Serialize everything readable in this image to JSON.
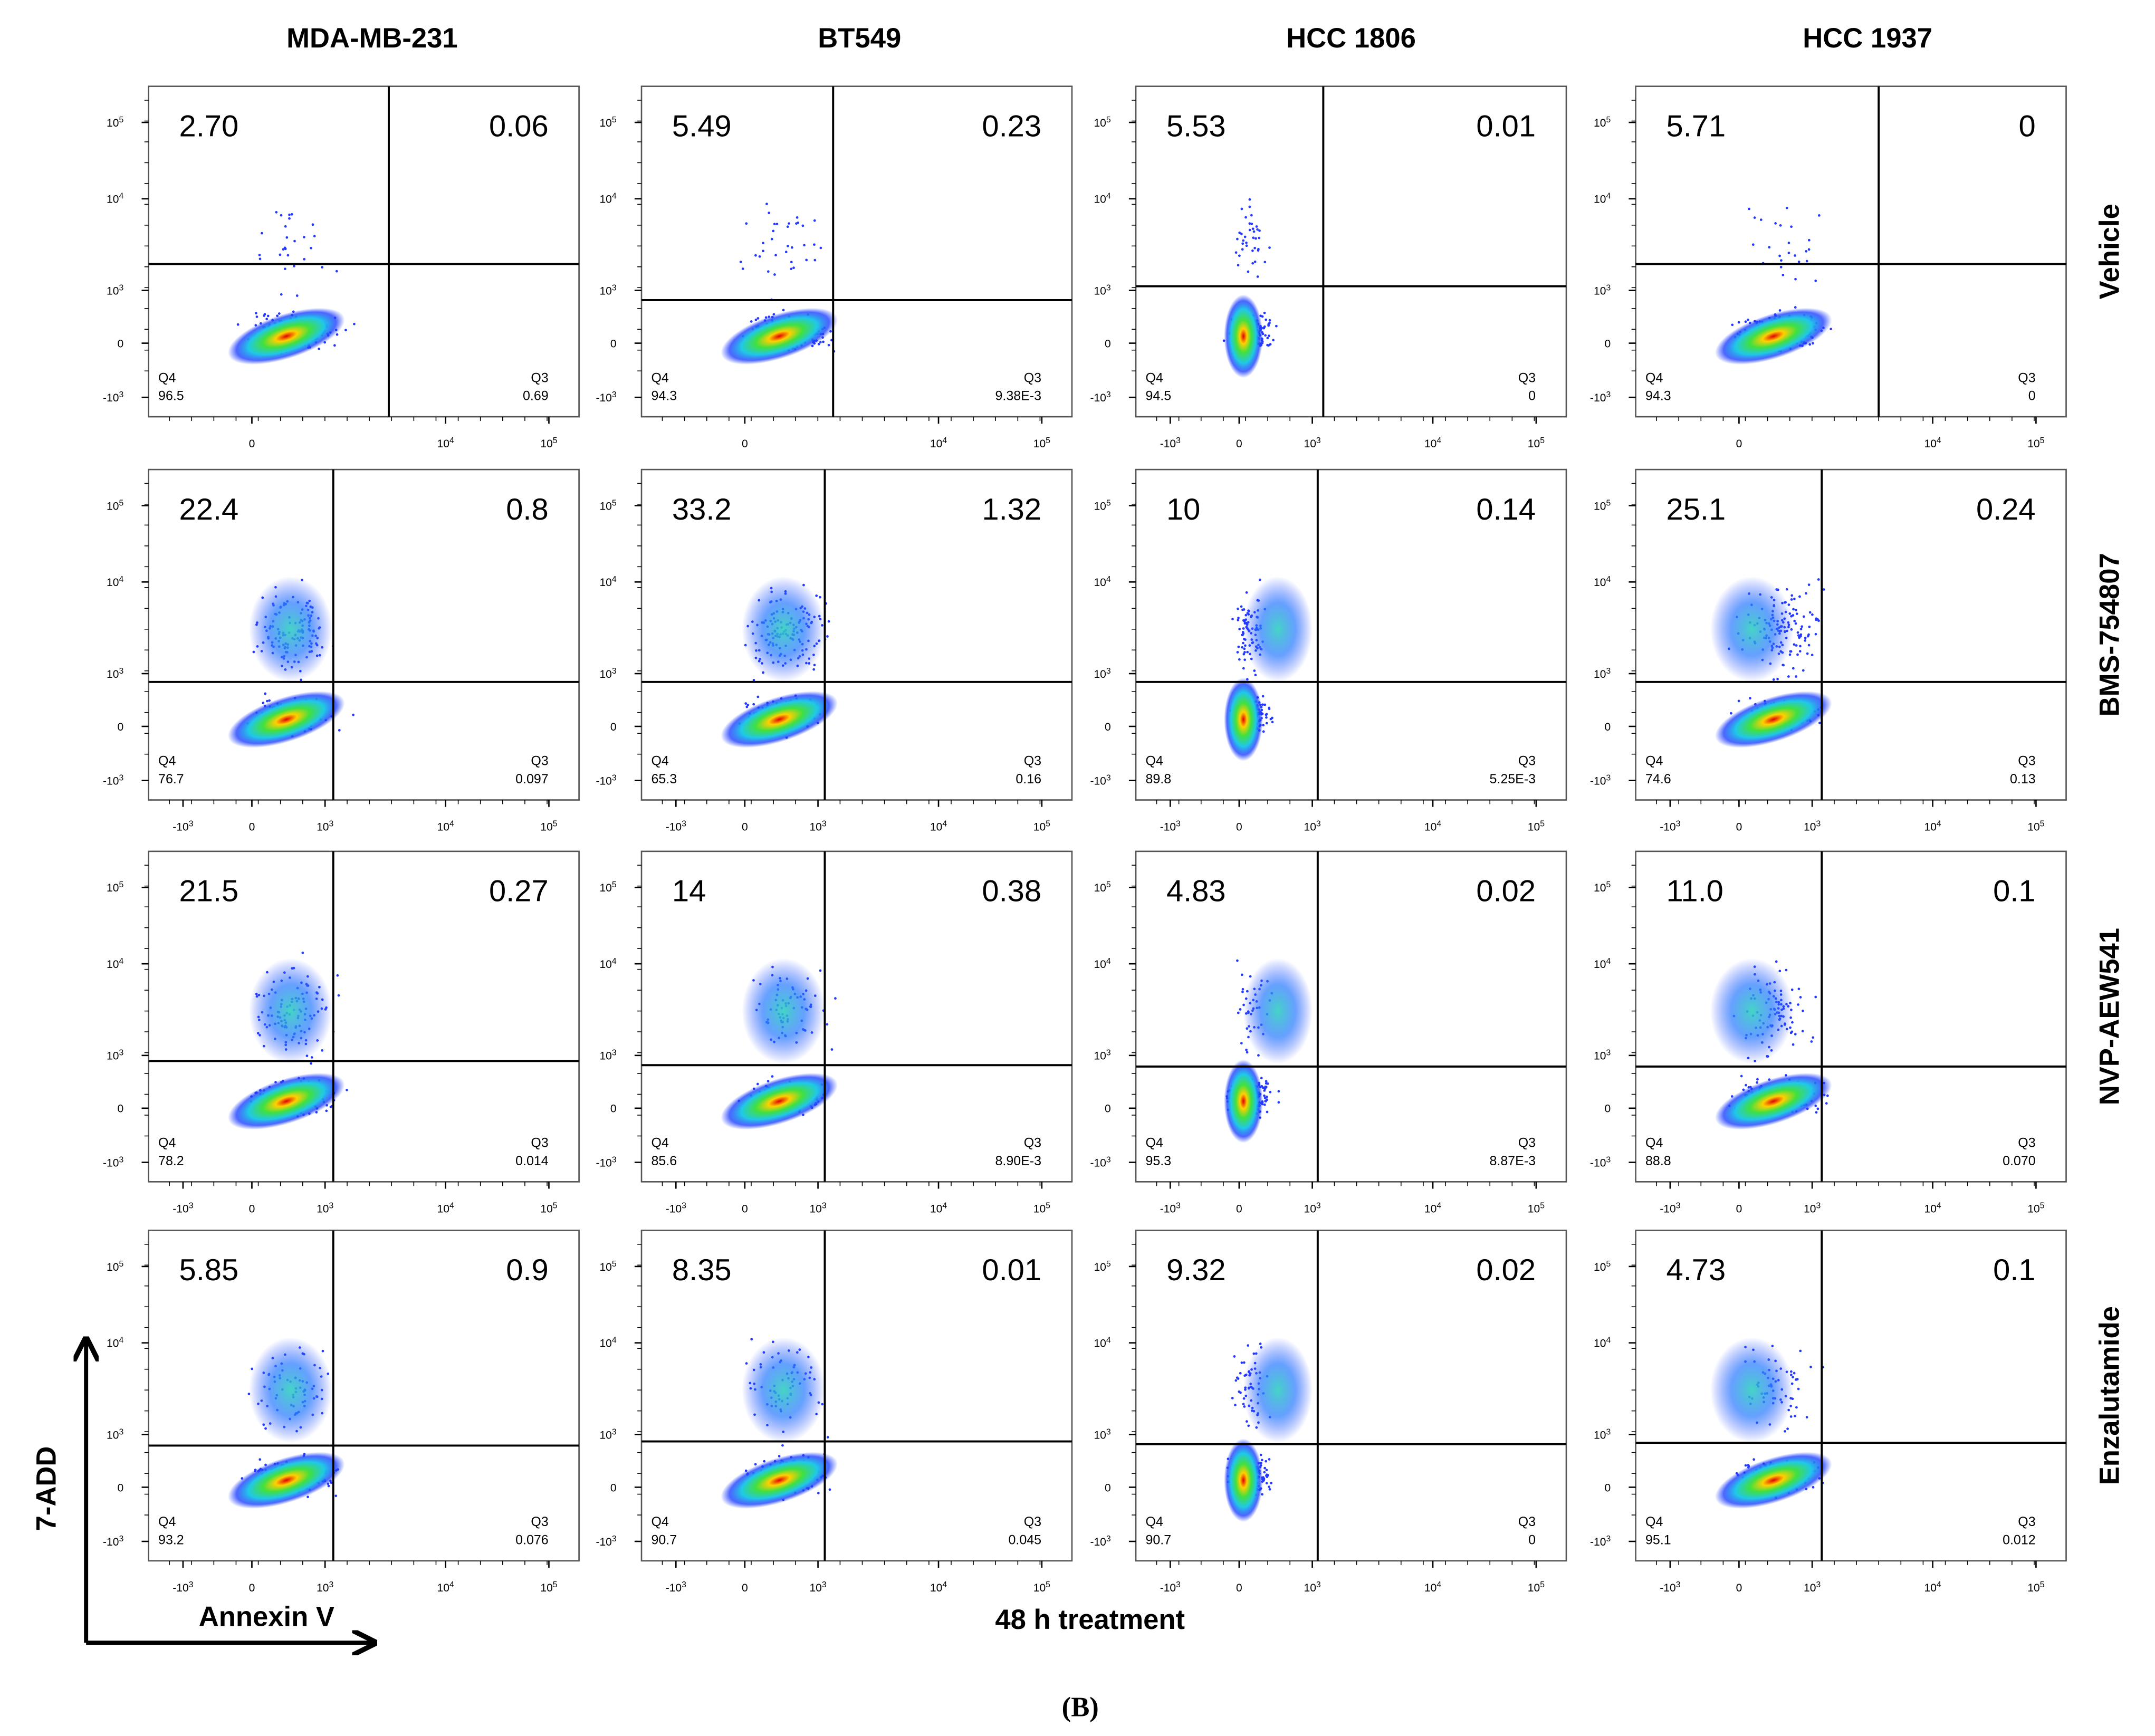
{
  "columns": [
    "MDA-MB-231",
    "BT549",
    "HCC 1806",
    "HCC 1937"
  ],
  "rows": [
    "Vehicle",
    "BMS-754807",
    "NVP-AEW541",
    "Enzalutamide"
  ],
  "quadrant_labels": {
    "lower_left": "Q4",
    "lower_right": "Q3"
  },
  "y_ticks": [
    {
      "base": "10",
      "exp": "5"
    },
    {
      "base": "10",
      "exp": "4"
    },
    {
      "base": "10",
      "exp": "3"
    },
    "0",
    {
      "base": "-10",
      "exp": "3"
    }
  ],
  "panels": [
    [
      {
        "upper_left": "2.70",
        "upper_right": "0.06",
        "lower_left": "96.5",
        "lower_right": "0.69",
        "x_ticks": [
          "0",
          {
            "base": "10",
            "exp": "4"
          },
          {
            "base": "10",
            "exp": "5"
          }
        ]
      },
      {
        "upper_left": "5.49",
        "upper_right": "0.23",
        "lower_left": "94.3",
        "lower_right": "9.38E-3",
        "x_ticks": [
          "0",
          {
            "base": "10",
            "exp": "4"
          },
          {
            "base": "10",
            "exp": "5"
          }
        ]
      },
      {
        "upper_left": "5.53",
        "upper_right": "0.01",
        "lower_left": "94.5",
        "lower_right": "0",
        "x_ticks": [
          {
            "base": "-10",
            "exp": "3"
          },
          "0",
          {
            "base": "10",
            "exp": "3"
          },
          {
            "base": "10",
            "exp": "4"
          },
          {
            "base": "10",
            "exp": "5"
          }
        ]
      },
      {
        "upper_left": "5.71",
        "upper_right": "0",
        "lower_left": "94.3",
        "lower_right": "0",
        "x_ticks": [
          "0",
          {
            "base": "10",
            "exp": "4"
          },
          {
            "base": "10",
            "exp": "5"
          }
        ]
      }
    ],
    [
      {
        "upper_left": "22.4",
        "upper_right": "0.8",
        "lower_left": "76.7",
        "lower_right": "0.097",
        "x_ticks": [
          {
            "base": "-10",
            "exp": "3"
          },
          "0",
          {
            "base": "10",
            "exp": "3"
          },
          {
            "base": "10",
            "exp": "4"
          },
          {
            "base": "10",
            "exp": "5"
          }
        ]
      },
      {
        "upper_left": "33.2",
        "upper_right": "1.32",
        "lower_left": "65.3",
        "lower_right": "0.16",
        "x_ticks": [
          {
            "base": "-10",
            "exp": "3"
          },
          "0",
          {
            "base": "10",
            "exp": "3"
          },
          {
            "base": "10",
            "exp": "4"
          },
          {
            "base": "10",
            "exp": "5"
          }
        ]
      },
      {
        "upper_left": "10",
        "upper_right": "0.14",
        "lower_left": "89.8",
        "lower_right": "5.25E-3",
        "x_ticks": [
          {
            "base": "-10",
            "exp": "3"
          },
          "0",
          {
            "base": "10",
            "exp": "3"
          },
          {
            "base": "10",
            "exp": "4"
          },
          {
            "base": "10",
            "exp": "5"
          }
        ]
      },
      {
        "upper_left": "25.1",
        "upper_right": "0.24",
        "lower_left": "74.6",
        "lower_right": "0.13",
        "x_ticks": [
          {
            "base": "-10",
            "exp": "3"
          },
          "0",
          {
            "base": "10",
            "exp": "3"
          },
          {
            "base": "10",
            "exp": "4"
          },
          {
            "base": "10",
            "exp": "5"
          }
        ]
      }
    ],
    [
      {
        "upper_left": "21.5",
        "upper_right": "0.27",
        "lower_left": "78.2",
        "lower_right": "0.014",
        "x_ticks": [
          {
            "base": "-10",
            "exp": "3"
          },
          "0",
          {
            "base": "10",
            "exp": "3"
          },
          {
            "base": "10",
            "exp": "4"
          },
          {
            "base": "10",
            "exp": "5"
          }
        ]
      },
      {
        "upper_left": "14",
        "upper_right": "0.38",
        "lower_left": "85.6",
        "lower_right": "8.90E-3",
        "x_ticks": [
          {
            "base": "-10",
            "exp": "3"
          },
          "0",
          {
            "base": "10",
            "exp": "3"
          },
          {
            "base": "10",
            "exp": "4"
          },
          {
            "base": "10",
            "exp": "5"
          }
        ]
      },
      {
        "upper_left": "4.83",
        "upper_right": "0.02",
        "lower_left": "95.3",
        "lower_right": "8.87E-3",
        "x_ticks": [
          {
            "base": "-10",
            "exp": "3"
          },
          "0",
          {
            "base": "10",
            "exp": "3"
          },
          {
            "base": "10",
            "exp": "4"
          },
          {
            "base": "10",
            "exp": "5"
          }
        ]
      },
      {
        "upper_left": "11.0",
        "upper_right": "0.1",
        "lower_left": "88.8",
        "lower_right": "0.070",
        "x_ticks": [
          {
            "base": "-10",
            "exp": "3"
          },
          "0",
          {
            "base": "10",
            "exp": "3"
          },
          {
            "base": "10",
            "exp": "4"
          },
          {
            "base": "10",
            "exp": "5"
          }
        ]
      }
    ],
    [
      {
        "upper_left": "5.85",
        "upper_right": "0.9",
        "lower_left": "93.2",
        "lower_right": "0.076",
        "x_ticks": [
          {
            "base": "-10",
            "exp": "3"
          },
          "0",
          {
            "base": "10",
            "exp": "3"
          },
          {
            "base": "10",
            "exp": "4"
          },
          {
            "base": "10",
            "exp": "5"
          }
        ]
      },
      {
        "upper_left": "8.35",
        "upper_right": "0.01",
        "lower_left": "90.7",
        "lower_right": "0.045",
        "x_ticks": [
          {
            "base": "-10",
            "exp": "3"
          },
          "0",
          {
            "base": "10",
            "exp": "3"
          },
          {
            "base": "10",
            "exp": "4"
          },
          {
            "base": "10",
            "exp": "5"
          }
        ]
      },
      {
        "upper_left": "9.32",
        "upper_right": "0.02",
        "lower_left": "90.7",
        "lower_right": "0",
        "x_ticks": [
          {
            "base": "-10",
            "exp": "3"
          },
          "0",
          {
            "base": "10",
            "exp": "3"
          },
          {
            "base": "10",
            "exp": "4"
          },
          {
            "base": "10",
            "exp": "5"
          }
        ]
      },
      {
        "upper_left": "4.73",
        "upper_right": "0.1",
        "lower_left": "95.1",
        "lower_right": "0.012",
        "x_ticks": [
          {
            "base": "-10",
            "exp": "3"
          },
          "0",
          {
            "base": "10",
            "exp": "3"
          },
          {
            "base": "10",
            "exp": "4"
          },
          {
            "base": "10",
            "exp": "5"
          }
        ]
      }
    ]
  ],
  "y_axis_label": "7-ADD",
  "x_axis_label": "Annexin V",
  "footer": "48 h treatment",
  "panel_label": "(B)"
}
